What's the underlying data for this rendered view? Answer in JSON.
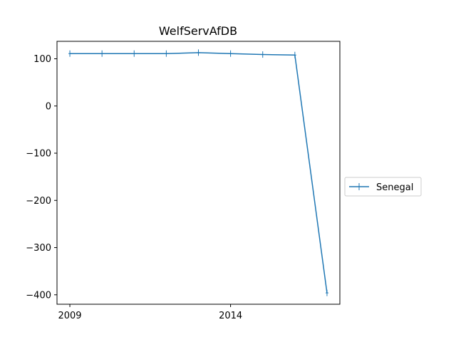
{
  "chart_data": {
    "type": "line",
    "title": "WelfServAfDB",
    "xlabel": "",
    "ylabel": "",
    "xlim": [
      2008.6,
      2017.4
    ],
    "ylim": [
      -420,
      137
    ],
    "x_ticks": [
      2009,
      2014
    ],
    "y_ticks": [
      100,
      0,
      -100,
      -200,
      -300,
      -400
    ],
    "x_tick_labels": [
      "2009",
      "2014"
    ],
    "y_tick_labels": [
      "100",
      "0",
      "−100",
      "−200",
      "−300",
      "−400"
    ],
    "grid": false,
    "legend": {
      "placement": "outside-right",
      "entries": [
        "Senegal"
      ]
    },
    "series": [
      {
        "name": "Senegal",
        "color": "#1f77b4",
        "marker": "plus",
        "x": [
          2009,
          2010,
          2011,
          2012,
          2013,
          2014,
          2015,
          2016,
          2017
        ],
        "y": [
          111,
          111,
          111,
          111,
          113,
          111,
          109,
          108,
          -396
        ]
      }
    ]
  }
}
